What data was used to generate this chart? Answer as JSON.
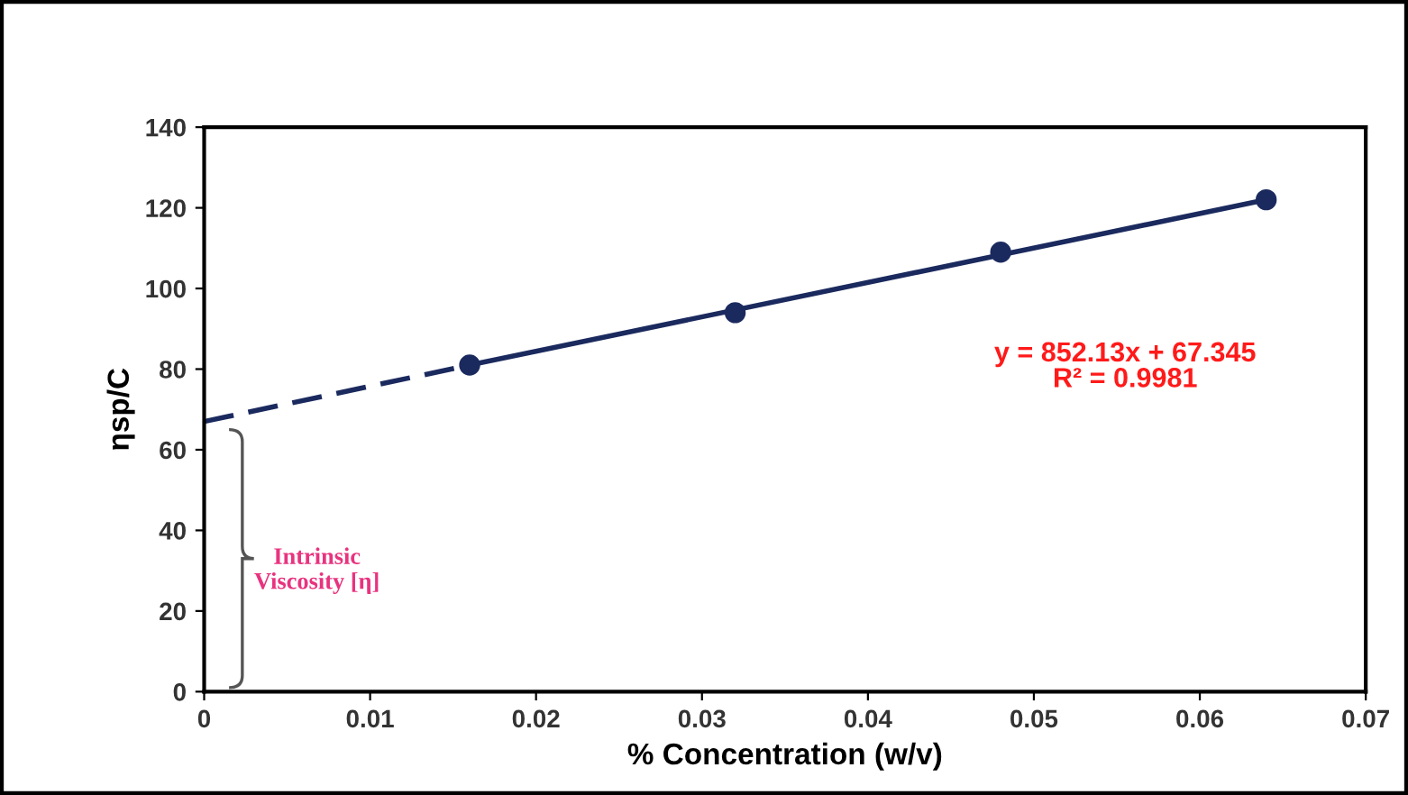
{
  "chart_data": {
    "type": "scatter",
    "xlabel": "% Concentration (w/v)",
    "ylabel": "ηsp/C",
    "xlim": [
      0,
      0.07
    ],
    "ylim": [
      0,
      140
    ],
    "xticks": [
      0,
      0.01,
      0.02,
      0.03,
      0.04,
      0.05,
      0.06,
      0.07
    ],
    "yticks": [
      0,
      20,
      40,
      60,
      80,
      100,
      120,
      140
    ],
    "series": [
      {
        "color": "#1b2a5e",
        "marker": "circle",
        "x": [
          0.016,
          0.032,
          0.048,
          0.064
        ],
        "values": [
          81,
          94,
          109,
          122
        ]
      },
      {
        "type": "line",
        "color": "#1b2a5e",
        "marker": "none",
        "line_style": "solid",
        "x": [
          0.016,
          0.064
        ],
        "values": [
          81,
          122
        ]
      },
      {
        "type": "line",
        "color": "#1b2a5e",
        "marker": "none",
        "line_style": "dashed",
        "x": [
          0,
          0.016
        ],
        "values": [
          67,
          81
        ]
      }
    ],
    "annotations": [
      "y = 852.13x + 67.345",
      "R² = 0.9981",
      "Intrinsic\nViscosity [η]"
    ],
    "grid": false,
    "legend": false
  }
}
